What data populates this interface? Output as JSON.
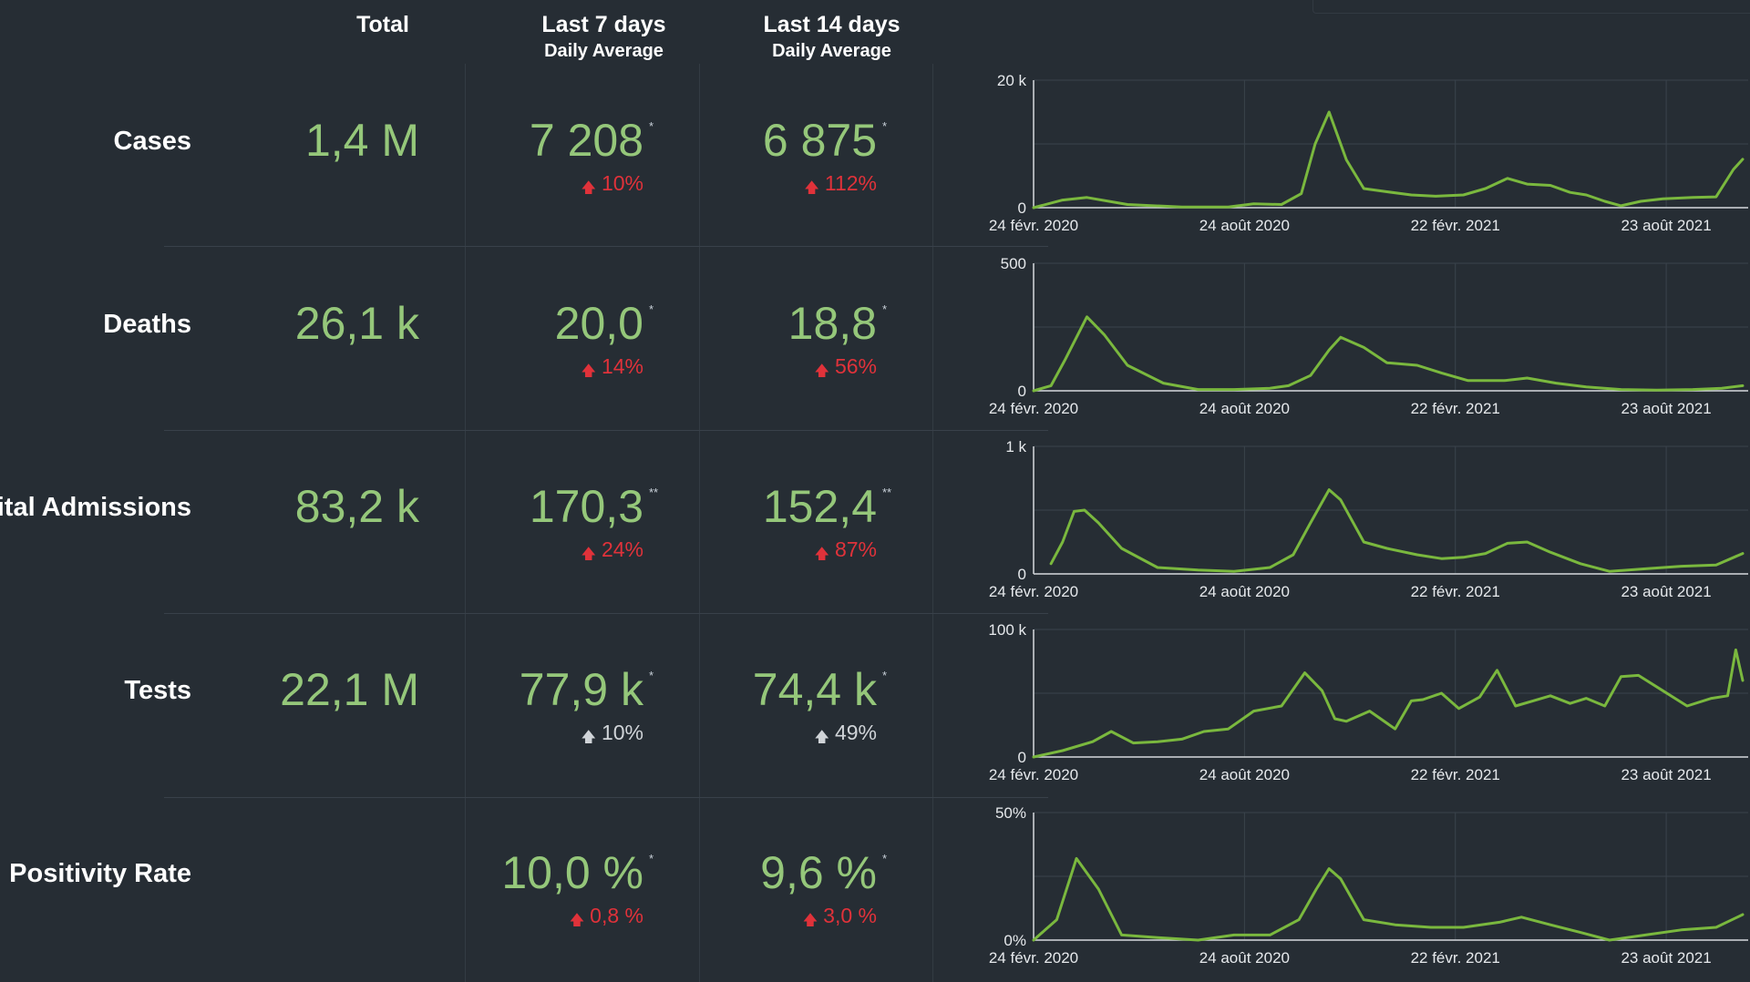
{
  "header": {
    "total": "Total",
    "last7_title": "Last 7 days",
    "last7_sub": "Daily Average",
    "last14_title": "Last 14 days",
    "last14_sub": "Daily Average"
  },
  "colors": {
    "background": "#262d34",
    "value_green": "#95c77a",
    "up_red": "#e0323a",
    "line_green": "#7ab83e"
  },
  "icons": {
    "trend_up": "arrow-up-icon"
  },
  "rows": [
    {
      "label": "Cases",
      "total": "1,4 M",
      "avg7": "7 208",
      "avg7_mark": "*",
      "delta7": "10%",
      "delta7_color": "red",
      "avg14": "6 875",
      "avg14_mark": "*",
      "delta14": "112%",
      "delta14_color": "red"
    },
    {
      "label": "Deaths",
      "total": "26,1 k",
      "avg7": "20,0",
      "avg7_mark": "*",
      "delta7": "14%",
      "delta7_color": "red",
      "avg14": "18,8",
      "avg14_mark": "*",
      "delta14": "56%",
      "delta14_color": "red"
    },
    {
      "label": "pital Admissions",
      "total": "83,2 k",
      "avg7": "170,3",
      "avg7_mark": "**",
      "delta7": "24%",
      "delta7_color": "red",
      "avg14": "152,4",
      "avg14_mark": "**",
      "delta14": "87%",
      "delta14_color": "red"
    },
    {
      "label": "Tests",
      "total": "22,1 M",
      "avg7": "77,9 k",
      "avg7_mark": "*",
      "delta7": "10%",
      "delta7_color": "gray",
      "avg14": "74,4 k",
      "avg14_mark": "*",
      "delta14": "49%",
      "delta14_color": "gray"
    },
    {
      "label": "Positivity Rate",
      "total": "",
      "avg7": "10,0 %",
      "avg7_mark": "*",
      "delta7": "0,8 %",
      "delta7_color": "red",
      "avg14": "9,6 %",
      "avg14_mark": "*",
      "delta14": "3,0 %",
      "delta14_color": "red"
    }
  ],
  "chart_data": [
    {
      "type": "line",
      "series_key": "cases",
      "x_ticks": [
        "24 févr. 2020",
        "24 août 2020",
        "22 févr. 2021",
        "23 août 2021"
      ],
      "y_ticks": [
        "0",
        "20 k"
      ],
      "ylim": [
        0,
        20000
      ],
      "grid": true,
      "x": [
        "2020-02-24",
        "2020-03-20",
        "2020-04-10",
        "2020-05-15",
        "2020-07-01",
        "2020-08-10",
        "2020-09-01",
        "2020-09-25",
        "2020-10-12",
        "2020-10-24",
        "2020-11-05",
        "2020-11-20",
        "2020-12-05",
        "2020-12-25",
        "2021-01-15",
        "2021-02-05",
        "2021-03-01",
        "2021-03-20",
        "2021-04-08",
        "2021-04-25",
        "2021-05-15",
        "2021-06-01",
        "2021-06-15",
        "2021-07-01",
        "2021-07-15",
        "2021-08-01",
        "2021-08-20",
        "2021-09-15",
        "2021-10-05",
        "2021-10-20",
        "2021-10-28"
      ],
      "y": [
        0,
        1200,
        1600,
        500,
        100,
        100,
        600,
        500,
        2200,
        10000,
        15000,
        7500,
        3000,
        2500,
        2000,
        1800,
        2000,
        3000,
        4600,
        3700,
        3500,
        2400,
        2000,
        1000,
        300,
        1000,
        1400,
        1600,
        1700,
        6000,
        7600
      ]
    },
    {
      "type": "line",
      "series_key": "deaths",
      "x_ticks": [
        "24 févr. 2020",
        "24 août 2020",
        "22 févr. 2021",
        "23 août 2021"
      ],
      "y_ticks": [
        "0",
        "500"
      ],
      "ylim": [
        0,
        500
      ],
      "grid": true,
      "x": [
        "2020-02-24",
        "2020-03-10",
        "2020-03-22",
        "2020-04-10",
        "2020-04-25",
        "2020-05-15",
        "2020-06-15",
        "2020-07-15",
        "2020-08-15",
        "2020-09-15",
        "2020-10-01",
        "2020-10-20",
        "2020-11-05",
        "2020-11-15",
        "2020-12-05",
        "2020-12-25",
        "2021-01-20",
        "2021-02-10",
        "2021-03-05",
        "2021-04-05",
        "2021-04-25",
        "2021-05-20",
        "2021-06-15",
        "2021-07-15",
        "2021-08-15",
        "2021-09-15",
        "2021-10-10",
        "2021-10-28"
      ],
      "y": [
        0,
        20,
        120,
        290,
        220,
        100,
        30,
        5,
        5,
        10,
        20,
        60,
        160,
        210,
        170,
        110,
        100,
        70,
        40,
        40,
        50,
        30,
        15,
        5,
        3,
        5,
        10,
        20
      ]
    },
    {
      "type": "line",
      "series_key": "hospital_admissions",
      "x_ticks": [
        "24 févr. 2020",
        "24 août 2020",
        "22 févr. 2021",
        "23 août 2021"
      ],
      "y_ticks": [
        "0",
        "1 k"
      ],
      "ylim": [
        0,
        1000
      ],
      "grid": true,
      "x": [
        "2020-03-10",
        "2020-03-20",
        "2020-03-30",
        "2020-04-08",
        "2020-04-20",
        "2020-05-10",
        "2020-06-10",
        "2020-07-15",
        "2020-08-15",
        "2020-09-15",
        "2020-10-05",
        "2020-10-20",
        "2020-11-05",
        "2020-11-15",
        "2020-12-05",
        "2020-12-25",
        "2021-01-20",
        "2021-02-10",
        "2021-03-01",
        "2021-03-20",
        "2021-04-08",
        "2021-04-25",
        "2021-05-15",
        "2021-06-10",
        "2021-07-05",
        "2021-08-05",
        "2021-09-05",
        "2021-10-05",
        "2021-10-28"
      ],
      "y": [
        80,
        250,
        490,
        500,
        400,
        200,
        50,
        30,
        20,
        50,
        150,
        400,
        660,
        580,
        250,
        200,
        150,
        120,
        130,
        160,
        240,
        250,
        170,
        80,
        20,
        40,
        60,
        70,
        160
      ]
    },
    {
      "type": "line",
      "series_key": "tests",
      "x_ticks": [
        "24 févr. 2020",
        "24 août 2020",
        "22 févr. 2021",
        "23 août 2021"
      ],
      "y_ticks": [
        "0",
        "100 k"
      ],
      "ylim": [
        0,
        100000
      ],
      "grid": true,
      "x": [
        "2020-02-24",
        "2020-03-20",
        "2020-04-15",
        "2020-05-01",
        "2020-05-20",
        "2020-06-10",
        "2020-07-01",
        "2020-07-20",
        "2020-08-10",
        "2020-09-01",
        "2020-09-25",
        "2020-10-15",
        "2020-10-30",
        "2020-11-10",
        "2020-11-20",
        "2020-12-10",
        "2021-01-01",
        "2021-01-15",
        "2021-01-25",
        "2021-02-10",
        "2021-02-25",
        "2021-03-15",
        "2021-03-30",
        "2021-04-15",
        "2021-04-30",
        "2021-05-15",
        "2021-06-01",
        "2021-06-15",
        "2021-07-01",
        "2021-07-15",
        "2021-07-30",
        "2021-08-20",
        "2021-09-10",
        "2021-10-01",
        "2021-10-15",
        "2021-10-22",
        "2021-10-28"
      ],
      "y": [
        0,
        5000,
        12000,
        20000,
        11000,
        12000,
        14000,
        20000,
        22000,
        36000,
        40000,
        66000,
        52000,
        30000,
        28000,
        36000,
        22000,
        44000,
        45000,
        50000,
        38000,
        47000,
        68000,
        40000,
        44000,
        48000,
        42000,
        46000,
        40000,
        63000,
        64000,
        52000,
        40000,
        46000,
        48000,
        84000,
        60000
      ]
    },
    {
      "type": "line",
      "series_key": "positivity_rate",
      "x_ticks": [
        "24 févr. 2020",
        "24 août 2020",
        "22 févr. 2021",
        "23 août 2021"
      ],
      "y_ticks": [
        "0%",
        "50%"
      ],
      "ylim": [
        0,
        50
      ],
      "grid": true,
      "x": [
        "2020-02-24",
        "2020-03-05",
        "2020-03-15",
        "2020-04-01",
        "2020-04-20",
        "2020-05-10",
        "2020-06-10",
        "2020-07-15",
        "2020-08-15",
        "2020-09-15",
        "2020-10-10",
        "2020-10-25",
        "2020-11-05",
        "2020-11-15",
        "2020-12-05",
        "2021-01-01",
        "2021-02-01",
        "2021-03-01",
        "2021-04-01",
        "2021-04-20",
        "2021-05-15",
        "2021-06-10",
        "2021-07-05",
        "2021-08-05",
        "2021-09-05",
        "2021-10-05",
        "2021-10-28"
      ],
      "y": [
        0,
        4,
        8,
        32,
        20,
        2,
        1,
        0,
        2,
        2,
        8,
        20,
        28,
        24,
        8,
        6,
        5,
        5,
        7,
        9,
        6,
        3,
        0,
        2,
        4,
        5,
        10
      ]
    }
  ]
}
